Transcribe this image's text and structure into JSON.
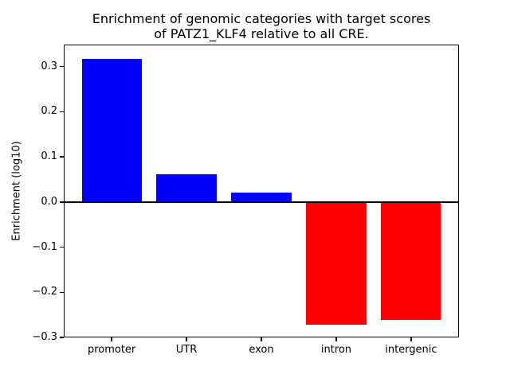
{
  "figure": {
    "background": "#ffffff"
  },
  "chart_data": {
    "type": "bar",
    "title": "Enrichment of genomic categories with target scores\nof PATZ1_KLF4 relative to all CRE.",
    "xlabel": "",
    "ylabel": "Enrichment (log10)",
    "categories": [
      "promoter",
      "UTR",
      "exon",
      "intron",
      "intergenic"
    ],
    "values": [
      0.317,
      0.061,
      0.021,
      -0.271,
      -0.261
    ],
    "bar_colors": [
      "#0000ff",
      "#0000ff",
      "#0000ff",
      "#ff0000",
      "#ff0000"
    ],
    "positive_color": "#0000ff",
    "negative_color": "#ff0000",
    "yticks": [
      0.3,
      0.2,
      0.1,
      0.0,
      -0.1,
      -0.2,
      -0.3
    ],
    "ytick_labels": [
      "0.3",
      "0.2",
      "0.1",
      "0.0",
      "−0.1",
      "−0.2",
      "−0.3"
    ],
    "ylim": [
      -0.3,
      0.349
    ],
    "xlim": [
      -0.64,
      4.64
    ],
    "bar_width_fraction": 0.8,
    "zero_line": true,
    "grid": false,
    "legend": null,
    "axis_color": "#000000",
    "text_color": "#000000"
  }
}
